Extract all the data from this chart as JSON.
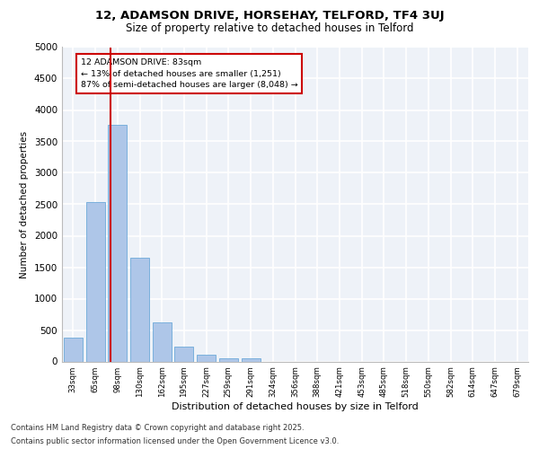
{
  "title1": "12, ADAMSON DRIVE, HORSEHAY, TELFORD, TF4 3UJ",
  "title2": "Size of property relative to detached houses in Telford",
  "xlabel": "Distribution of detached houses by size in Telford",
  "ylabel": "Number of detached properties",
  "categories": [
    "33sqm",
    "65sqm",
    "98sqm",
    "130sqm",
    "162sqm",
    "195sqm",
    "227sqm",
    "259sqm",
    "291sqm",
    "324sqm",
    "356sqm",
    "388sqm",
    "421sqm",
    "453sqm",
    "485sqm",
    "518sqm",
    "550sqm",
    "582sqm",
    "614sqm",
    "647sqm",
    "679sqm"
  ],
  "values": [
    375,
    2530,
    3760,
    1650,
    620,
    230,
    105,
    55,
    55,
    0,
    0,
    0,
    0,
    0,
    0,
    0,
    0,
    0,
    0,
    0,
    0
  ],
  "bar_color": "#aec6e8",
  "bar_edge_color": "#5a9fd4",
  "vline_x": 1.68,
  "vline_color": "#cc0000",
  "annotation_text": "12 ADAMSON DRIVE: 83sqm\n← 13% of detached houses are smaller (1,251)\n87% of semi-detached houses are larger (8,048) →",
  "annotation_box_color": "#ffffff",
  "annotation_box_edge_color": "#cc0000",
  "ylim": [
    0,
    5000
  ],
  "yticks": [
    0,
    500,
    1000,
    1500,
    2000,
    2500,
    3000,
    3500,
    4000,
    4500,
    5000
  ],
  "footer1": "Contains HM Land Registry data © Crown copyright and database right 2025.",
  "footer2": "Contains public sector information licensed under the Open Government Licence v3.0.",
  "bg_color": "#eef2f8",
  "grid_color": "#ffffff"
}
